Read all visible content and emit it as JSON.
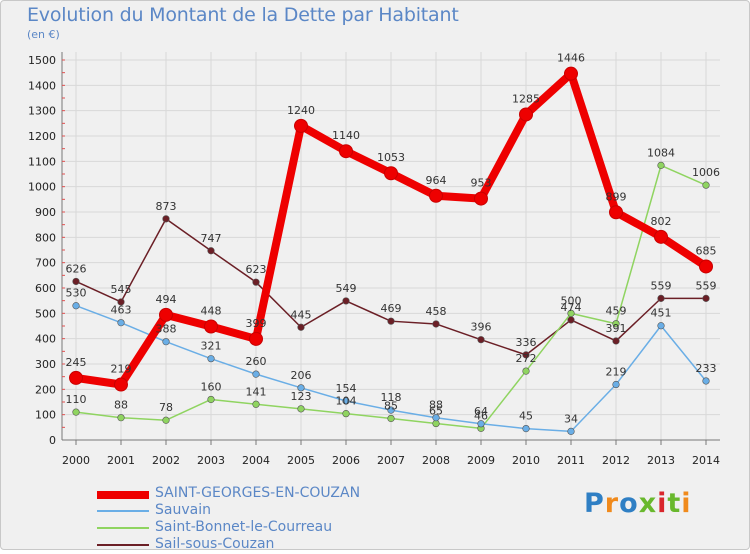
{
  "header": {
    "title": "Evolution du Montant de la Dette par Habitant",
    "subtitle": "(en €)"
  },
  "logo": {
    "text": "Proxiti",
    "letter_colors": [
      "#2f7fc4",
      "#f08a1c",
      "#2f7fc4",
      "#69b82d",
      "#d9262c",
      "#69b82d",
      "#f08a1c"
    ]
  },
  "chart_data": {
    "type": "line",
    "x": [
      "2000",
      "2001",
      "2002",
      "2003",
      "2004",
      "2005",
      "2006",
      "2007",
      "2008",
      "2009",
      "2010",
      "2011",
      "2012",
      "2013",
      "2014"
    ],
    "ylim": [
      0,
      1500
    ],
    "yticks": [
      "0",
      "100",
      "200",
      "300",
      "400",
      "500",
      "600",
      "700",
      "800",
      "900",
      "1000",
      "1100",
      "1200",
      "1300",
      "1400",
      "1500"
    ],
    "grid": true,
    "legend_position": "bottom-left",
    "series": [
      {
        "name": "Sail-sous-Couzan",
        "color": "#6b1f26",
        "values": [
          626,
          545,
          873,
          747,
          623,
          445,
          549,
          469,
          458,
          396,
          336,
          474,
          391,
          559,
          559
        ],
        "labels": [
          "626",
          "545",
          "873",
          "747",
          "623",
          "445",
          "549",
          "469",
          "458",
          "396",
          "336",
          "474",
          "391",
          "559",
          "559"
        ]
      },
      {
        "name": "Saint-Bonnet-le-Courreau",
        "color": "#8fd460",
        "values": [
          110,
          88,
          78,
          160,
          141,
          123,
          104,
          85,
          65,
          46,
          272,
          500,
          459,
          1084,
          1006
        ],
        "labels": [
          "110",
          "88",
          "78",
          "160",
          "141",
          "123",
          "104",
          "85",
          "65",
          "46",
          "272",
          "500",
          "459",
          "1084",
          "1006"
        ]
      },
      {
        "name": "Sauvain",
        "color": "#6aaee6",
        "values": [
          530,
          463,
          388,
          321,
          260,
          206,
          154,
          118,
          88,
          64,
          45,
          34,
          219,
          451,
          233
        ],
        "labels": [
          "530",
          "463",
          "388",
          "321",
          "260",
          "206",
          "154",
          "118",
          "88",
          "64",
          "45",
          "34",
          "219",
          "451",
          "233"
        ]
      },
      {
        "name": "SAINT-GEORGES-EN-COUZAN",
        "color": "#ee0000",
        "values": [
          245,
          219,
          494,
          448,
          399,
          1240,
          1140,
          1053,
          964,
          953,
          1285,
          1446,
          899,
          802,
          685
        ],
        "labels": [
          "245",
          "219",
          "494",
          "448",
          "399",
          "1240",
          "1140",
          "1053",
          "964",
          "953",
          "1285",
          "1446",
          "899",
          "802",
          "685"
        ]
      }
    ],
    "legend": [
      "SAINT-GEORGES-EN-COUZAN",
      "Sauvain",
      "Saint-Bonnet-le-Courreau",
      "Sail-sous-Couzan"
    ]
  }
}
